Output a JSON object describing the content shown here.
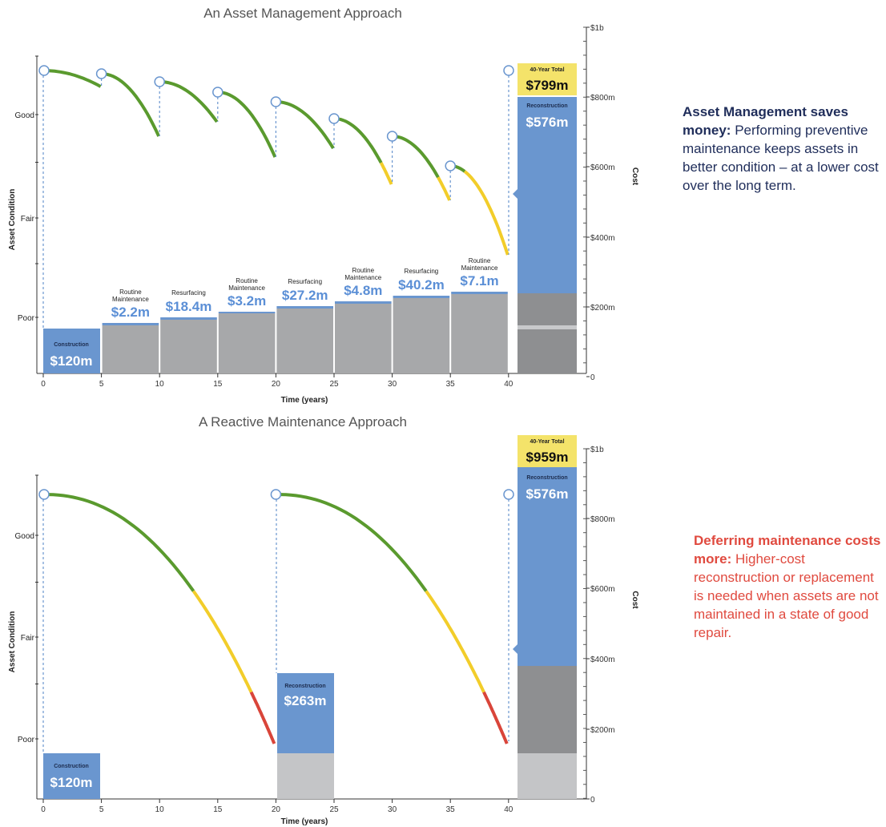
{
  "chart_data": [
    {
      "type": "line",
      "title": "An Asset Management Approach",
      "xlabel": "Time (years)",
      "ylabel_left": "Asset Condition",
      "ylabel_right": "Cost",
      "x_ticks": [
        0,
        5,
        10,
        15,
        20,
        25,
        30,
        35,
        40
      ],
      "condition_levels": [
        "Good",
        "Fair",
        "Poor"
      ],
      "cost_ticks": [
        "$1b",
        "$800m",
        "$600m",
        "$400m",
        "$200m",
        "0"
      ],
      "condition_segments": [
        {
          "start": 0,
          "end": 5
        },
        {
          "start": 5,
          "end": 10
        },
        {
          "start": 10,
          "end": 15
        },
        {
          "start": 15,
          "end": 20
        },
        {
          "start": 20,
          "end": 25
        },
        {
          "start": 25,
          "end": 30
        },
        {
          "start": 30,
          "end": 35
        },
        {
          "start": 35,
          "end": 40
        }
      ],
      "treatments": [
        {
          "label": "Construction",
          "amount": "$120m",
          "year": 0
        },
        {
          "label": "Routine Maintenance",
          "amount": "$2.2m",
          "year": 5
        },
        {
          "label": "Resurfacing",
          "amount": "$18.4m",
          "year": 10
        },
        {
          "label": "Routine Maintenance",
          "amount": "$3.2m",
          "year": 15
        },
        {
          "label": "Resurfacing",
          "amount": "$27.2m",
          "year": 20
        },
        {
          "label": "Routine Maintenance",
          "amount": "$4.8m",
          "year": 25
        },
        {
          "label": "Resurfacing",
          "amount": "$40.2m",
          "year": 30
        },
        {
          "label": "Routine Maintenance",
          "amount": "$7.1m",
          "year": 35
        },
        {
          "label": "Reconstruction",
          "amount": "$576m",
          "year": 40
        }
      ],
      "total": {
        "label": "40-Year Total",
        "amount": "$799m"
      }
    },
    {
      "type": "line",
      "title": "A Reactive Maintenance Approach",
      "xlabel": "Time (years)",
      "ylabel_left": "Asset Condition",
      "ylabel_right": "Cost",
      "x_ticks": [
        0,
        5,
        10,
        15,
        20,
        25,
        30,
        35,
        40
      ],
      "condition_levels": [
        "Good",
        "Fair",
        "Poor"
      ],
      "cost_ticks": [
        "$1b",
        "$800m",
        "$600m",
        "$400m",
        "$200m",
        "0"
      ],
      "condition_segments": [
        {
          "start": 0,
          "end": 20
        },
        {
          "start": 20,
          "end": 40
        }
      ],
      "treatments": [
        {
          "label": "Construction",
          "amount": "$120m",
          "year": 0
        },
        {
          "label": "Reconstruction",
          "amount": "$263m",
          "year": 20
        },
        {
          "label": "Reconstruction",
          "amount": "$576m",
          "year": 40
        }
      ],
      "total": {
        "label": "40-Year Total",
        "amount": "$959m"
      }
    }
  ],
  "notes": {
    "asset_bold": "Asset Management saves money:",
    "asset_text": " Performing preventive maintenance keeps assets in better condition – at a lower cost over the long term.",
    "reactive_bold": "Deferring maintenance costs more:",
    "reactive_text": " Higher-cost reconstruction or replacement is needed when assets are not maintained in a state of good repair."
  },
  "colors": {
    "good": "#5a9a2e",
    "fair": "#f2cd2a",
    "poor": "#d9453a",
    "treatment_box": "#6a96cf",
    "amount_text": "#5b8fd6",
    "total_box": "#f4e36a",
    "asset_note": "#1f2d5a",
    "reactive_note": "#e04a3f"
  }
}
